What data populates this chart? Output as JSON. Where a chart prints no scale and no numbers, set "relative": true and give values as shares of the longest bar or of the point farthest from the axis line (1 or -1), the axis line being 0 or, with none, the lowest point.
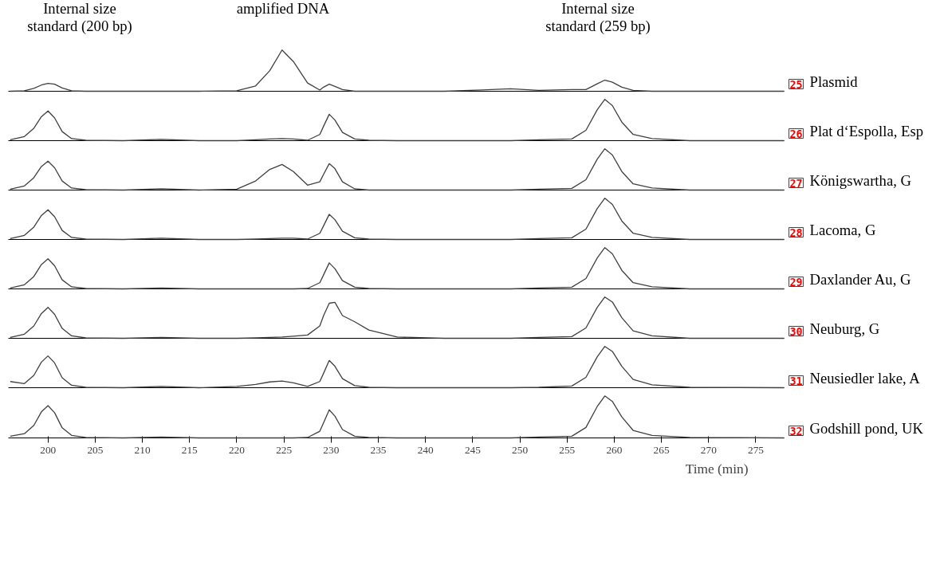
{
  "chart_data": [
    {
      "type": "line",
      "relative": true,
      "annotations": [
        "25",
        "Internal size\nstandard (200 bp)",
        "amplified DNA",
        "Internal size\nstandard (259 bp)"
      ],
      "xlim": [
        195.8,
        278
      ],
      "tick_labels": false,
      "grid": false,
      "x": [
        196,
        197.5,
        198.5,
        199.3,
        200,
        200.7,
        201.5,
        202.5,
        204,
        208,
        212,
        216,
        220,
        222,
        223.5,
        224.8,
        226,
        227.5,
        228.8,
        229.2,
        229.8,
        230.4,
        231.2,
        232.5,
        234,
        237,
        242,
        246,
        249,
        252,
        255.5,
        257,
        258.2,
        259,
        259.8,
        260.8,
        262,
        264,
        268,
        278
      ],
      "series": [
        {
          "name": "Plasmid",
          "color": "#404040",
          "values": [
            0,
            0.01,
            0.07,
            0.15,
            0.19,
            0.17,
            0.08,
            0.01,
            0,
            0,
            0,
            0,
            0.01,
            0.13,
            0.5,
            1,
            0.72,
            0.2,
            0.03,
            0.1,
            0.17,
            0.12,
            0.04,
            0,
            0,
            0,
            0,
            0.03,
            0.06,
            0.02,
            0.04,
            0.04,
            0.18,
            0.27,
            0.22,
            0.1,
            0.02,
            0,
            0,
            0
          ]
        }
      ]
    },
    {
      "type": "line",
      "relative": true,
      "annotations": [
        "26"
      ],
      "xlim": [
        195.8,
        278
      ],
      "tick_labels": false,
      "grid": false,
      "x": [
        196,
        197.5,
        198.5,
        199.3,
        200,
        200.7,
        201.5,
        202.5,
        204,
        208,
        212,
        216,
        220,
        222,
        223.5,
        224.8,
        226,
        227.5,
        228.8,
        229.2,
        229.8,
        230.4,
        231.2,
        232.5,
        234,
        237,
        242,
        246,
        249,
        252,
        255.5,
        257,
        258.2,
        259,
        259.8,
        260.8,
        262,
        264,
        268,
        278
      ],
      "series": [
        {
          "name": "Plat d‘Espolla, Esp",
          "color": "#404040",
          "values": [
            0.02,
            0.1,
            0.3,
            0.58,
            0.72,
            0.55,
            0.22,
            0.05,
            0.01,
            0,
            0.03,
            0,
            0,
            0.02,
            0.04,
            0.05,
            0.04,
            0.01,
            0.15,
            0.35,
            0.64,
            0.5,
            0.2,
            0.04,
            0.01,
            0,
            0,
            0,
            0,
            0.02,
            0.04,
            0.25,
            0.75,
            1,
            0.85,
            0.45,
            0.15,
            0.05,
            0,
            0
          ]
        }
      ]
    },
    {
      "type": "line",
      "relative": true,
      "annotations": [
        "27"
      ],
      "xlim": [
        195.8,
        278
      ],
      "tick_labels": false,
      "grid": false,
      "x": [
        196,
        197.5,
        198.5,
        199.3,
        200,
        200.7,
        201.5,
        202.5,
        204,
        208,
        212,
        216,
        220,
        222,
        223.5,
        224.8,
        226,
        227.5,
        228.8,
        229.2,
        229.8,
        230.4,
        231.2,
        232.5,
        234,
        237,
        242,
        246,
        249,
        252,
        255.5,
        257,
        258.2,
        259,
        259.8,
        260.8,
        262,
        264,
        268,
        278
      ],
      "series": [
        {
          "name": "Königswartha, G",
          "color": "#404040",
          "values": [
            0.02,
            0.1,
            0.3,
            0.57,
            0.7,
            0.54,
            0.22,
            0.05,
            0.01,
            0,
            0.03,
            0,
            0.02,
            0.22,
            0.5,
            0.62,
            0.45,
            0.12,
            0.2,
            0.38,
            0.64,
            0.52,
            0.2,
            0.03,
            0,
            0,
            0,
            0,
            0,
            0.02,
            0.04,
            0.25,
            0.75,
            1,
            0.85,
            0.45,
            0.15,
            0.05,
            0,
            0
          ]
        }
      ]
    },
    {
      "type": "line",
      "relative": true,
      "annotations": [
        "28"
      ],
      "xlim": [
        195.8,
        278
      ],
      "tick_labels": false,
      "grid": false,
      "x": [
        196,
        197.5,
        198.5,
        199.3,
        200,
        200.7,
        201.5,
        202.5,
        204,
        208,
        212,
        216,
        220,
        222,
        223.5,
        224.8,
        226,
        227.5,
        228.8,
        229.2,
        229.8,
        230.4,
        231.2,
        232.5,
        234,
        237,
        242,
        246,
        249,
        252,
        255.5,
        257,
        258.2,
        259,
        259.8,
        260.8,
        262,
        264,
        268,
        278
      ],
      "series": [
        {
          "name": "Lacoma, G",
          "color": "#404040",
          "values": [
            0.02,
            0.1,
            0.3,
            0.58,
            0.72,
            0.55,
            0.22,
            0.05,
            0.01,
            0,
            0.03,
            0,
            0,
            0.01,
            0.02,
            0.03,
            0.03,
            0.01,
            0.15,
            0.33,
            0.61,
            0.48,
            0.2,
            0.04,
            0.01,
            0,
            0,
            0,
            0,
            0.02,
            0.04,
            0.25,
            0.75,
            1,
            0.85,
            0.45,
            0.15,
            0.05,
            0,
            0
          ]
        }
      ]
    },
    {
      "type": "line",
      "relative": true,
      "annotations": [
        "29"
      ],
      "xlim": [
        195.8,
        278
      ],
      "tick_labels": false,
      "grid": false,
      "x": [
        196,
        197.5,
        198.5,
        199.3,
        200,
        200.7,
        201.5,
        202.5,
        204,
        208,
        212,
        216,
        220,
        222,
        223.5,
        224.8,
        226,
        227.5,
        228.8,
        229.2,
        229.8,
        230.4,
        231.2,
        232.5,
        234,
        237,
        242,
        246,
        249,
        252,
        255.5,
        257,
        258.2,
        259,
        259.8,
        260.8,
        262,
        264,
        268,
        278
      ],
      "series": [
        {
          "name": "Daxlander Au, G",
          "color": "#404040",
          "values": [
            0.02,
            0.1,
            0.3,
            0.59,
            0.73,
            0.56,
            0.22,
            0.05,
            0.01,
            0,
            0.02,
            0,
            0,
            0,
            0,
            0,
            0,
            0.01,
            0.15,
            0.34,
            0.63,
            0.49,
            0.2,
            0.04,
            0.01,
            0,
            0,
            0,
            0,
            0.02,
            0.04,
            0.25,
            0.75,
            1,
            0.85,
            0.45,
            0.15,
            0.05,
            0,
            0
          ]
        }
      ]
    },
    {
      "type": "line",
      "relative": true,
      "annotations": [
        "30"
      ],
      "xlim": [
        195.8,
        278
      ],
      "tick_labels": false,
      "grid": false,
      "x": [
        196,
        197.5,
        198.5,
        199.3,
        200,
        200.7,
        201.5,
        202.5,
        204,
        208,
        212,
        216,
        220,
        222,
        223.5,
        224.8,
        226,
        227.5,
        228.8,
        229.2,
        229.8,
        230.4,
        231.2,
        232.5,
        234,
        237,
        242,
        246,
        249,
        252,
        255.5,
        257,
        258.2,
        259,
        259.8,
        260.8,
        262,
        264,
        268,
        278
      ],
      "series": [
        {
          "name": "Neuburg, G",
          "color": "#404040",
          "values": [
            0.02,
            0.1,
            0.3,
            0.6,
            0.75,
            0.58,
            0.24,
            0.06,
            0.01,
            0,
            0.02,
            0,
            0,
            0.01,
            0.02,
            0.03,
            0.05,
            0.08,
            0.3,
            0.55,
            0.85,
            0.87,
            0.55,
            0.4,
            0.2,
            0.03,
            0,
            0,
            0,
            0.02,
            0.04,
            0.25,
            0.75,
            1,
            0.88,
            0.5,
            0.18,
            0.06,
            0,
            0
          ]
        }
      ]
    },
    {
      "type": "line",
      "relative": true,
      "annotations": [
        "31"
      ],
      "xlim": [
        195.8,
        278
      ],
      "tick_labels": false,
      "grid": false,
      "x": [
        196,
        197.5,
        198.5,
        199.3,
        200,
        200.7,
        201.5,
        202.5,
        204,
        208,
        212,
        216,
        220,
        222,
        223.5,
        224.8,
        226,
        227.5,
        228.8,
        229.2,
        229.8,
        230.4,
        231.2,
        232.5,
        234,
        237,
        242,
        246,
        249,
        252,
        255.5,
        257,
        258.2,
        259,
        259.8,
        260.8,
        262,
        264,
        268,
        278
      ],
      "series": [
        {
          "name": "Neusiedler lake, A",
          "color": "#404040",
          "values": [
            0.15,
            0.1,
            0.3,
            0.62,
            0.77,
            0.6,
            0.24,
            0.06,
            0.01,
            0,
            0.03,
            0,
            0.03,
            0.08,
            0.14,
            0.16,
            0.12,
            0.03,
            0.15,
            0.35,
            0.66,
            0.52,
            0.22,
            0.05,
            0.01,
            0,
            0,
            0,
            0,
            0.01,
            0.04,
            0.25,
            0.75,
            1,
            0.88,
            0.52,
            0.2,
            0.07,
            0.01,
            0
          ]
        }
      ]
    },
    {
      "type": "line",
      "relative": true,
      "annotations": [
        "32"
      ],
      "xlim": [
        195.8,
        278
      ],
      "xticks": [
        200,
        205,
        210,
        215,
        220,
        225,
        230,
        235,
        240,
        245,
        250,
        255,
        260,
        265,
        270,
        275
      ],
      "tick_labels": "x",
      "grid": false,
      "xlabel": "Time (min)",
      "x": [
        196,
        197.5,
        198.5,
        199.3,
        200,
        200.7,
        201.5,
        202.5,
        204,
        208,
        212,
        216,
        220,
        222,
        223.5,
        224.8,
        226,
        227.5,
        228.8,
        229.2,
        229.8,
        230.4,
        231.2,
        232.5,
        234,
        237,
        242,
        246,
        249,
        252,
        255.5,
        257,
        258.2,
        259,
        259.8,
        260.8,
        262,
        264,
        268,
        278
      ],
      "series": [
        {
          "name": "Godshill pond, UK",
          "color": "#404040",
          "values": [
            0.04,
            0.1,
            0.3,
            0.62,
            0.77,
            0.6,
            0.24,
            0.06,
            0.01,
            0,
            0.02,
            0,
            0,
            0,
            0,
            0,
            0,
            0.01,
            0.16,
            0.36,
            0.67,
            0.52,
            0.2,
            0.04,
            0.01,
            0,
            0,
            0,
            0,
            0.02,
            0.04,
            0.25,
            0.75,
            1,
            0.87,
            0.5,
            0.18,
            0.06,
            0.01,
            0
          ]
        }
      ]
    }
  ]
}
